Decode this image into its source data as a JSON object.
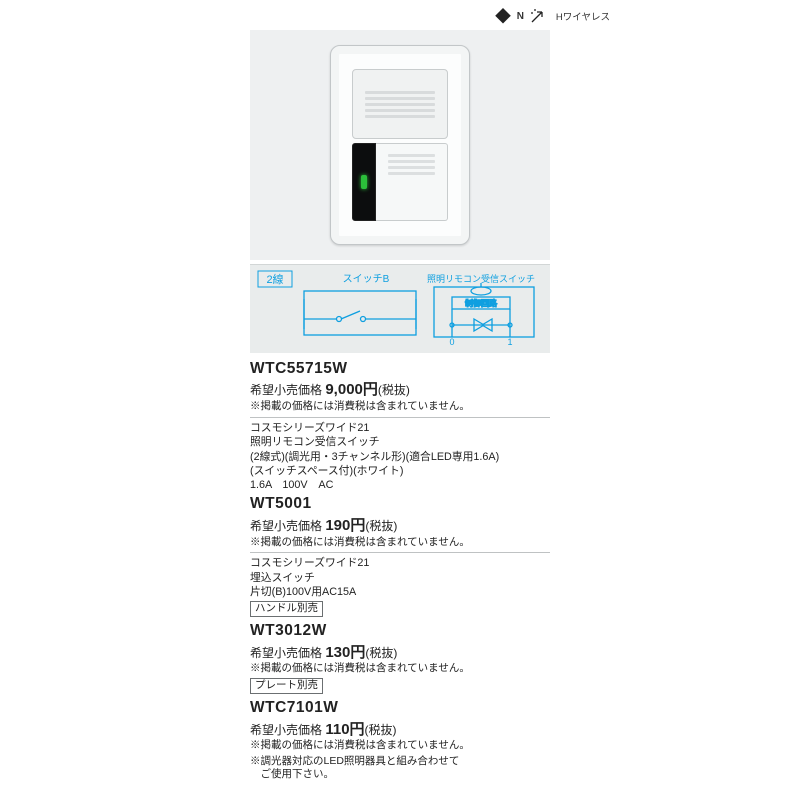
{
  "header": {
    "n_mark": "N",
    "wireless": "Hワイヤレス"
  },
  "diagram": {
    "wire_badge": "2線",
    "label_switch_b": "スイッチB",
    "label_receiver": "照明リモコン受信スイッチ",
    "ctrl_box": "制御回路",
    "terminal_0": "0",
    "terminal_1": "1",
    "badge_bg": "#e9ecec",
    "label_color": "#0e9fe0",
    "line_color": "#0e9fe0"
  },
  "products": [
    {
      "model": "WTC55715W",
      "price_label": "希望小売価格",
      "price": "9,000円",
      "tax": "(税抜)",
      "tax_note": "※掲載の価格には消費税は含まれていません。",
      "specs": [
        "コスモシリーズワイド21",
        "照明リモコン受信スイッチ",
        "(2線式)(調光用・3チャンネル形)(適合LED専用1.6A)",
        "(スイッチスペース付)(ホワイト)",
        "1.6A　100V　AC"
      ]
    },
    {
      "model": "WT5001",
      "price_label": "希望小売価格",
      "price": "190円",
      "tax": "(税抜)",
      "tax_note": "※掲載の価格には消費税は含まれていません。",
      "specs": [
        "コスモシリーズワイド21",
        "埋込スイッチ",
        "片切(B)100V用AC15A"
      ],
      "tag": "ハンドル別売"
    },
    {
      "model": "WT3012W",
      "price_label": "希望小売価格",
      "price": "130円",
      "tax": "(税抜)",
      "tax_note": "※掲載の価格には消費税は含まれていません。",
      "tag": "プレート別売"
    },
    {
      "model": "WTC7101W",
      "price_label": "希望小売価格",
      "price": "110円",
      "tax": "(税抜)",
      "tax_note": "※掲載の価格には消費税は含まれていません。"
    }
  ],
  "footer": {
    "line1": "※調光器対応のLED照明器具と組み合わせて",
    "line2": "　ご使用下さい。"
  },
  "colors": {
    "text": "#222222",
    "rule": "#bfc2c3",
    "cyan": "#0e9fe0",
    "photo_bg": "#eef0f1"
  }
}
